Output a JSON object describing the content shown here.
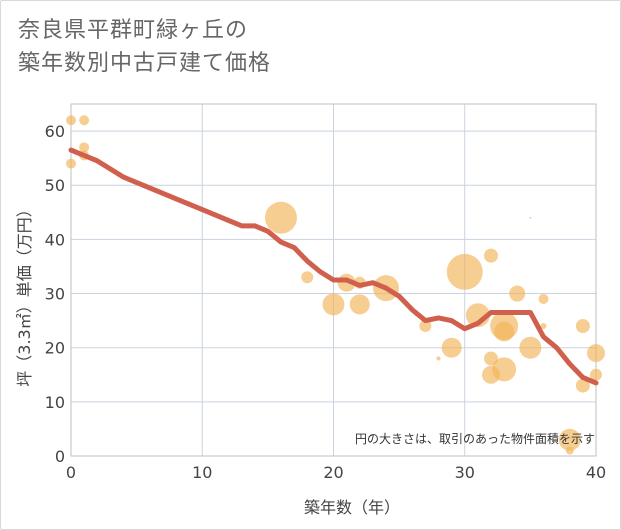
{
  "title_lines": [
    "奈良県平群町緑ヶ丘の",
    "築年数別中古戸建て価格"
  ],
  "colors": {
    "bubble": "#f2b457",
    "bubble_opacity": 0.65,
    "trend": "#d0604d",
    "grid": "#c9d3df",
    "plot_border": "#bfbfbf"
  },
  "chart_data": {
    "type": "scatter",
    "xlabel": "築年数（年）",
    "ylabel": "坪（3.3㎡）単価（万円）",
    "xlim": [
      0,
      40
    ],
    "ylim": [
      0,
      65
    ],
    "x_ticks": [
      0,
      10,
      20,
      30,
      40
    ],
    "y_ticks": [
      0,
      10,
      20,
      30,
      40,
      50,
      60
    ],
    "grid": true,
    "note": "円の大きさは、取引のあった物件面積を示す",
    "bubbles": [
      {
        "x": 0,
        "y": 62,
        "size": 5
      },
      {
        "x": 0,
        "y": 54,
        "size": 5
      },
      {
        "x": 1,
        "y": 62,
        "size": 5
      },
      {
        "x": 1,
        "y": 57,
        "size": 5
      },
      {
        "x": 1,
        "y": 55.5,
        "size": 5
      },
      {
        "x": 16,
        "y": 44,
        "size": 16
      },
      {
        "x": 18,
        "y": 33,
        "size": 6
      },
      {
        "x": 20,
        "y": 28,
        "size": 11
      },
      {
        "x": 21,
        "y": 32,
        "size": 9
      },
      {
        "x": 22,
        "y": 28,
        "size": 10
      },
      {
        "x": 22,
        "y": 32,
        "size": 6
      },
      {
        "x": 24,
        "y": 31,
        "size": 13
      },
      {
        "x": 27,
        "y": 24,
        "size": 6
      },
      {
        "x": 28,
        "y": 18,
        "size": 2
      },
      {
        "x": 29,
        "y": 20,
        "size": 10
      },
      {
        "x": 30,
        "y": 34,
        "size": 18
      },
      {
        "x": 31,
        "y": 26,
        "size": 12
      },
      {
        "x": 32,
        "y": 37,
        "size": 7
      },
      {
        "x": 32,
        "y": 18,
        "size": 7
      },
      {
        "x": 32,
        "y": 15,
        "size": 9
      },
      {
        "x": 33,
        "y": 24,
        "size": 14
      },
      {
        "x": 33,
        "y": 23,
        "size": 10
      },
      {
        "x": 33,
        "y": 16,
        "size": 12
      },
      {
        "x": 34,
        "y": 30,
        "size": 8
      },
      {
        "x": 35,
        "y": 44,
        "size": 1
      },
      {
        "x": 35,
        "y": 20,
        "size": 11
      },
      {
        "x": 36,
        "y": 29,
        "size": 5
      },
      {
        "x": 36,
        "y": 24,
        "size": 3
      },
      {
        "x": 38,
        "y": 3,
        "size": 11
      },
      {
        "x": 38,
        "y": 1,
        "size": 4
      },
      {
        "x": 39,
        "y": 24,
        "size": 7
      },
      {
        "x": 39,
        "y": 13,
        "size": 7
      },
      {
        "x": 40,
        "y": 19,
        "size": 9
      },
      {
        "x": 40,
        "y": 15,
        "size": 6
      }
    ],
    "trend": [
      {
        "x": 0,
        "y": 56.5
      },
      {
        "x": 2,
        "y": 54.5
      },
      {
        "x": 4,
        "y": 51.5
      },
      {
        "x": 6,
        "y": 49.5
      },
      {
        "x": 8,
        "y": 47.5
      },
      {
        "x": 10,
        "y": 45.5
      },
      {
        "x": 12,
        "y": 43.5
      },
      {
        "x": 13,
        "y": 42.5
      },
      {
        "x": 14,
        "y": 42.5
      },
      {
        "x": 15,
        "y": 41.5
      },
      {
        "x": 16,
        "y": 39.5
      },
      {
        "x": 17,
        "y": 38.5
      },
      {
        "x": 18,
        "y": 36
      },
      {
        "x": 19,
        "y": 34
      },
      {
        "x": 20,
        "y": 32.5
      },
      {
        "x": 21,
        "y": 32.5
      },
      {
        "x": 22,
        "y": 31.5
      },
      {
        "x": 23,
        "y": 32
      },
      {
        "x": 24,
        "y": 31
      },
      {
        "x": 25,
        "y": 29.5
      },
      {
        "x": 26,
        "y": 27
      },
      {
        "x": 27,
        "y": 25
      },
      {
        "x": 28,
        "y": 25.5
      },
      {
        "x": 29,
        "y": 25
      },
      {
        "x": 30,
        "y": 23.5
      },
      {
        "x": 31,
        "y": 24.5
      },
      {
        "x": 32,
        "y": 26.5
      },
      {
        "x": 33,
        "y": 26.5
      },
      {
        "x": 34,
        "y": 26.5
      },
      {
        "x": 35,
        "y": 26.5
      },
      {
        "x": 36,
        "y": 22
      },
      {
        "x": 37,
        "y": 20
      },
      {
        "x": 38,
        "y": 17
      },
      {
        "x": 39,
        "y": 14.5
      },
      {
        "x": 40,
        "y": 13.5
      }
    ]
  }
}
